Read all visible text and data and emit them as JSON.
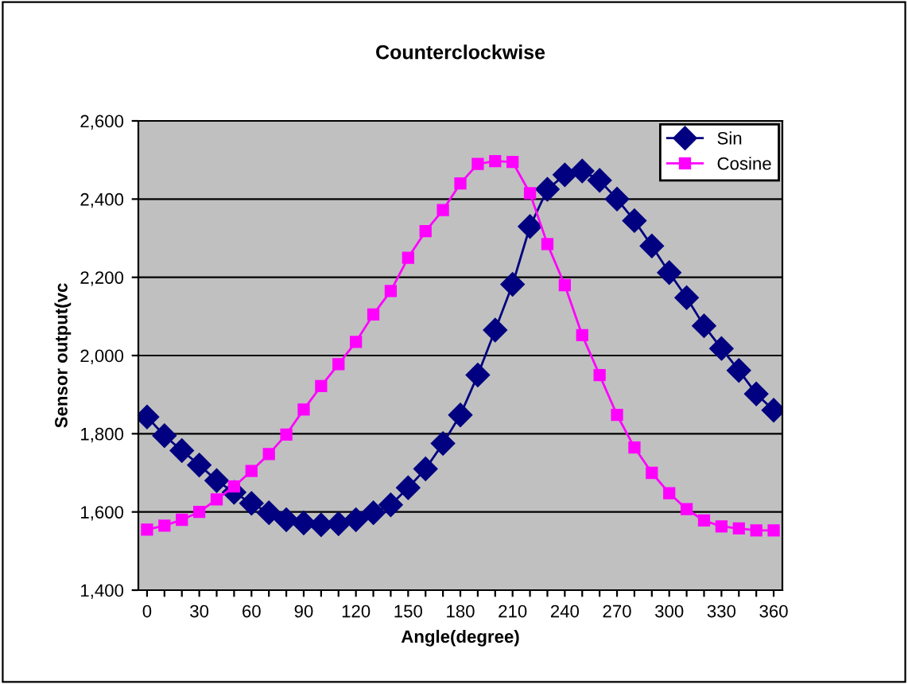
{
  "chart_data": {
    "type": "line",
    "title": "Counterclockwise",
    "xlabel": "Angle(degree)",
    "ylabel": "Sensor output(vc",
    "x": [
      0,
      10,
      20,
      30,
      40,
      50,
      60,
      70,
      80,
      90,
      100,
      110,
      120,
      130,
      140,
      150,
      160,
      170,
      180,
      190,
      200,
      210,
      220,
      230,
      240,
      250,
      260,
      270,
      280,
      290,
      300,
      310,
      320,
      330,
      340,
      350,
      360
    ],
    "series": [
      {
        "name": "Sin",
        "color": "#000080",
        "marker": "diamond",
        "values": [
          1843,
          1795,
          1757,
          1720,
          1680,
          1650,
          1622,
          1598,
          1580,
          1572,
          1567,
          1570,
          1580,
          1598,
          1618,
          1662,
          1710,
          1775,
          1848,
          1950,
          2065,
          2182,
          2330,
          2425,
          2462,
          2472,
          2448,
          2400,
          2345,
          2280,
          2212,
          2148,
          2076,
          2018,
          1962,
          1902,
          1860
        ]
      },
      {
        "name": "Cosine",
        "color": "#ff00ff",
        "marker": "square",
        "values": [
          1555,
          1565,
          1580,
          1600,
          1632,
          1665,
          1705,
          1748,
          1798,
          1862,
          1922,
          1978,
          2035,
          2105,
          2165,
          2250,
          2318,
          2372,
          2440,
          2490,
          2497,
          2495,
          2415,
          2285,
          2180,
          2052,
          1950,
          1848,
          1765,
          1700,
          1648,
          1607,
          1578,
          1563,
          1558,
          1553,
          1553
        ]
      }
    ],
    "xlim": [
      -5,
      365
    ],
    "xticks": [
      0,
      {
        "value": 10,
        "label": null
      },
      {
        "value": 20,
        "label": null
      },
      30,
      {
        "value": 40,
        "label": null
      },
      {
        "value": 50,
        "label": null
      },
      60,
      {
        "value": 70,
        "label": null
      },
      {
        "value": 80,
        "label": null
      },
      90,
      {
        "value": 100,
        "label": null
      },
      {
        "value": 110,
        "label": null
      },
      120,
      {
        "value": 130,
        "label": null
      },
      {
        "value": 140,
        "label": null
      },
      150,
      {
        "value": 160,
        "label": null
      },
      {
        "value": 170,
        "label": null
      },
      180,
      {
        "value": 190,
        "label": null
      },
      {
        "value": 200,
        "label": null
      },
      210,
      {
        "value": 220,
        "label": null
      },
      {
        "value": 230,
        "label": null
      },
      240,
      {
        "value": 250,
        "label": null
      },
      {
        "value": 260,
        "label": null
      },
      270,
      {
        "value": 280,
        "label": null
      },
      {
        "value": 290,
        "label": null
      },
      300,
      {
        "value": 310,
        "label": null
      },
      {
        "value": 320,
        "label": null
      },
      330,
      {
        "value": 340,
        "label": null
      },
      {
        "value": 350,
        "label": null
      },
      360
    ],
    "ylim": [
      1400,
      2600
    ],
    "yticks": [
      {
        "value": 1400,
        "label": "1,400"
      },
      {
        "value": 1600,
        "label": "1,600"
      },
      {
        "value": 1800,
        "label": "1,800"
      },
      {
        "value": 2000,
        "label": "2,000"
      },
      {
        "value": 2200,
        "label": "2,200"
      },
      {
        "value": 2400,
        "label": "2,400"
      },
      {
        "value": 2600,
        "label": "2,600"
      }
    ],
    "grid": "y",
    "legend": "top right",
    "line_style": "solid"
  }
}
